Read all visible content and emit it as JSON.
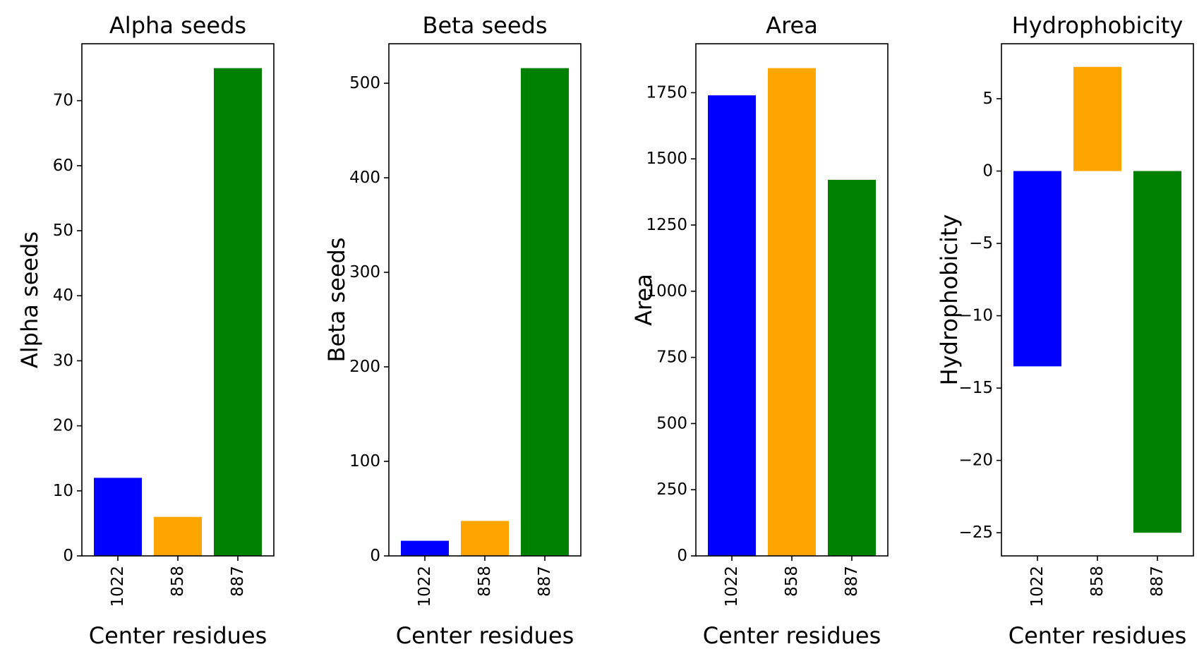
{
  "chart_data": [
    {
      "type": "bar",
      "title": "Alpha seeds",
      "xlabel": "Center residues",
      "ylabel": "Alpha seeds",
      "categories": [
        "1022",
        "858",
        "887"
      ],
      "values": [
        12,
        6,
        75
      ],
      "colors": [
        "#0000ff",
        "#ffa500",
        "#008000"
      ],
      "ylim": [
        0,
        78.75
      ],
      "yticks": [
        0,
        10,
        20,
        30,
        40,
        50,
        60,
        70
      ],
      "ytick_labels": [
        "0",
        "10",
        "20",
        "30",
        "40",
        "50",
        "60",
        "70"
      ],
      "grid": false
    },
    {
      "type": "bar",
      "title": "Beta seeds",
      "xlabel": "Center residues",
      "ylabel": "Beta seeds",
      "categories": [
        "1022",
        "858",
        "887"
      ],
      "values": [
        16,
        37,
        516
      ],
      "colors": [
        "#0000ff",
        "#ffa500",
        "#008000"
      ],
      "ylim": [
        0,
        541.8
      ],
      "yticks": [
        0,
        100,
        200,
        300,
        400,
        500
      ],
      "ytick_labels": [
        "0",
        "100",
        "200",
        "300",
        "400",
        "500"
      ],
      "grid": false
    },
    {
      "type": "bar",
      "title": "Area",
      "xlabel": "Center residues",
      "ylabel": "Area",
      "categories": [
        "1022",
        "858",
        "887"
      ],
      "values": [
        1740,
        1843,
        1421
      ],
      "colors": [
        "#0000ff",
        "#ffa500",
        "#008000"
      ],
      "ylim": [
        0,
        1935
      ],
      "yticks": [
        0,
        250,
        500,
        750,
        1000,
        1250,
        1500,
        1750
      ],
      "ytick_labels": [
        "0",
        "250",
        "500",
        "750",
        "1000",
        "1250",
        "1500",
        "1750"
      ],
      "grid": false
    },
    {
      "type": "bar",
      "title": "Hydrophobicity",
      "xlabel": "Center residues",
      "ylabel": "Hydrophobicity",
      "categories": [
        "1022",
        "858",
        "887"
      ],
      "values": [
        -13.5,
        7.2,
        -25
      ],
      "colors": [
        "#0000ff",
        "#ffa500",
        "#008000"
      ],
      "ylim": [
        -26.6,
        8.8
      ],
      "yticks": [
        -25,
        -20,
        -15,
        -10,
        -5,
        0,
        5
      ],
      "ytick_labels": [
        "−25",
        "−20",
        "−15",
        "−10",
        "−5",
        "0",
        "5"
      ],
      "grid": false
    }
  ]
}
